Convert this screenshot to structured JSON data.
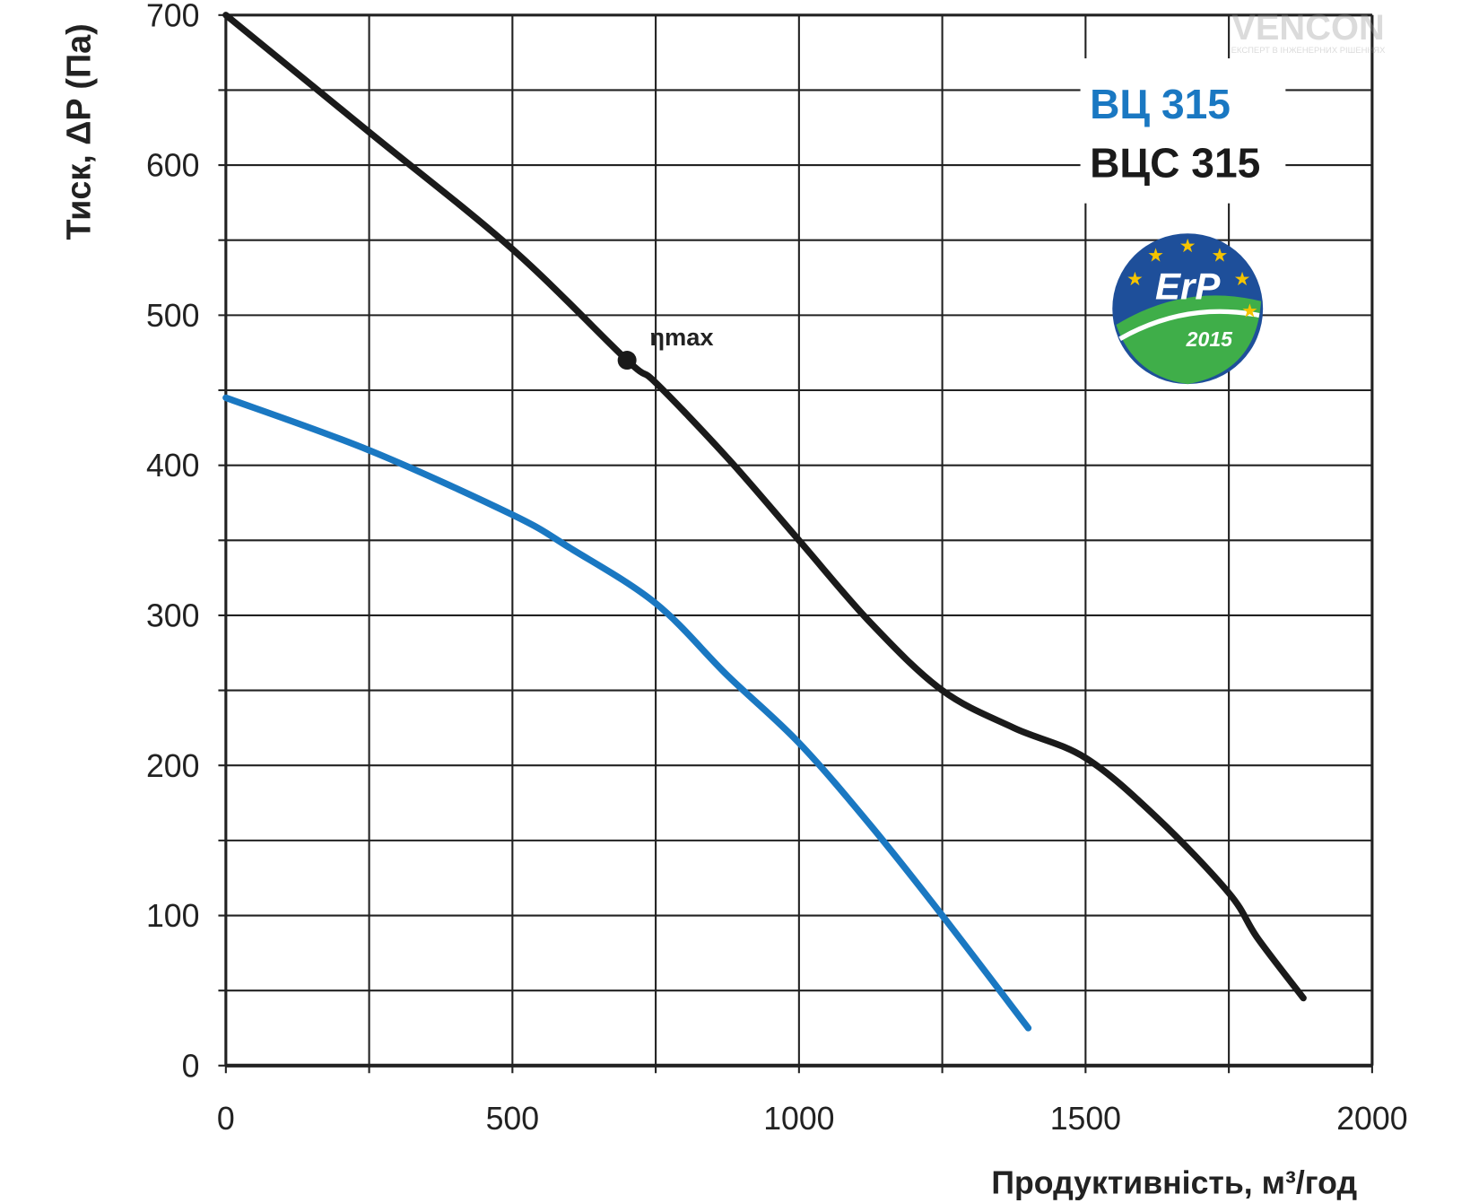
{
  "chart_data": {
    "type": "line",
    "title": "",
    "xlabel": "Продуктивність, м³/год",
    "ylabel": "Тиск, ΔP (Па)",
    "xlim": [
      0,
      2000
    ],
    "ylim": [
      0,
      700
    ],
    "grid": true,
    "x_ticks": [
      0,
      500,
      1000,
      1500,
      2000
    ],
    "y_ticks": [
      0,
      100,
      200,
      300,
      400,
      500,
      600,
      700
    ],
    "x_grid_step": 250,
    "y_grid_step": 50,
    "legend_placement": "top-right",
    "series": [
      {
        "name": "ВЦ 315",
        "color": "#1a78c2",
        "x": [
          0,
          250,
          500,
          600,
          750,
          875,
          1000,
          1125,
          1250,
          1400
        ],
        "y": [
          445,
          410,
          367,
          345,
          308,
          260,
          215,
          160,
          100,
          25
        ]
      },
      {
        "name": "ВЦС 315",
        "color": "#1a1a1a",
        "x": [
          0,
          250,
          500,
          700,
          750,
          875,
          1000,
          1125,
          1250,
          1375,
          1500,
          1625,
          1750,
          1800,
          1880
        ],
        "y": [
          700,
          622,
          544,
          470,
          455,
          405,
          350,
          295,
          250,
          225,
          205,
          165,
          115,
          85,
          45
        ]
      }
    ],
    "annotations": [
      {
        "text": "ηmax",
        "x": 700,
        "y": 470,
        "series": "ВЦС 315"
      }
    ]
  },
  "logos": {
    "badge": {
      "text": "ErP",
      "year": "2015"
    },
    "watermark": {
      "text": "VENCON",
      "subtitle": "ЕКСПЕРТ В ІНЖЕНЕРНИХ РІШЕННЯХ"
    }
  }
}
